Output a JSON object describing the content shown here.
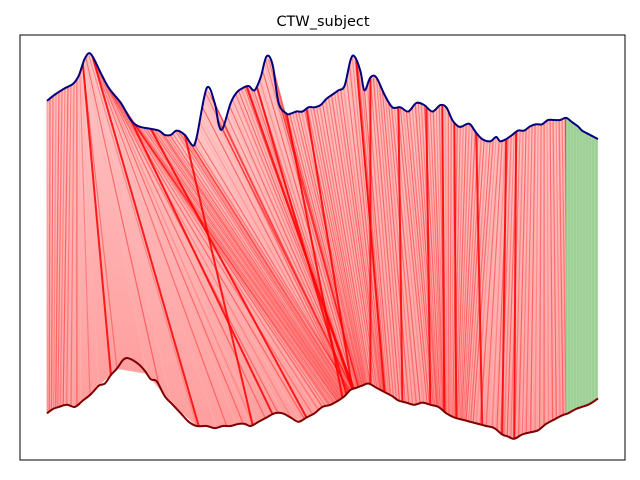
{
  "chart_data": {
    "type": "line",
    "title": "CTW_subject",
    "xlabel": "",
    "ylabel": "",
    "grid": false,
    "legend": "none",
    "colors": {
      "top_series": "#00007f",
      "bottom_series": "#7f0000",
      "alignment_lines": "#ff0000",
      "alignment_fill": "#ffb3b3",
      "tail_fill": "#a8d5a0",
      "tail_lines": "#7fbf7f"
    },
    "top_series": {
      "x": [
        0,
        8,
        18,
        26,
        32,
        38,
        44,
        54,
        62,
        74,
        84,
        92,
        102,
        112,
        118,
        124,
        130,
        138,
        146,
        150,
        160,
        168,
        172,
        176,
        184,
        190,
        196,
        202,
        208,
        214,
        220,
        226,
        232,
        240,
        244,
        250,
        256,
        262,
        268,
        274,
        280,
        286,
        292,
        298,
        304,
        308,
        314,
        318,
        324,
        330,
        338,
        346,
        354,
        362,
        370,
        378,
        386,
        394,
        400,
        406,
        412,
        416,
        420,
        424,
        430,
        436,
        444,
        450,
        454,
        460,
        466,
        472,
        478,
        484,
        490,
        496,
        502,
        508,
        514,
        520,
        526,
        532,
        536,
        540,
        544,
        548,
        552
      ],
      "y": [
        0.845,
        0.86,
        0.875,
        0.885,
        0.905,
        0.945,
        0.955,
        0.91,
        0.875,
        0.84,
        0.8,
        0.785,
        0.78,
        0.775,
        0.765,
        0.765,
        0.775,
        0.765,
        0.74,
        0.76,
        0.875,
        0.84,
        0.79,
        0.78,
        0.84,
        0.865,
        0.875,
        0.88,
        0.87,
        0.9,
        0.95,
        0.93,
        0.84,
        0.815,
        0.815,
        0.82,
        0.82,
        0.83,
        0.83,
        0.835,
        0.85,
        0.86,
        0.87,
        0.88,
        0.94,
        0.95,
        0.915,
        0.87,
        0.9,
        0.9,
        0.86,
        0.83,
        0.83,
        0.82,
        0.84,
        0.835,
        0.82,
        0.835,
        0.83,
        0.8,
        0.785,
        0.785,
        0.79,
        0.79,
        0.77,
        0.755,
        0.75,
        0.76,
        0.75,
        0.755,
        0.765,
        0.775,
        0.775,
        0.785,
        0.79,
        0.79,
        0.8,
        0.8,
        0.8,
        0.805,
        0.795,
        0.785,
        0.775,
        0.77,
        0.765,
        0.76,
        0.755
      ]
    },
    "bottom_series": {
      "x": [
        0,
        6,
        12,
        20,
        28,
        36,
        44,
        52,
        58,
        64,
        70,
        76,
        80,
        86,
        92,
        98,
        104,
        110,
        118,
        126,
        134,
        142,
        150,
        160,
        168,
        176,
        184,
        192,
        198,
        204,
        212,
        220,
        228,
        236,
        244,
        252,
        260,
        268,
        276,
        284,
        292,
        298,
        304,
        310,
        316,
        322,
        330,
        338,
        346,
        352,
        360,
        368,
        376,
        384,
        392,
        400,
        408,
        416,
        424,
        432,
        440,
        448,
        456,
        462,
        468,
        476,
        484,
        492,
        500,
        508,
        516,
        522,
        530,
        536,
        542,
        546,
        552
      ],
      "y": [
        0.11,
        0.12,
        0.125,
        0.13,
        0.125,
        0.14,
        0.155,
        0.175,
        0.18,
        0.2,
        0.215,
        0.235,
        0.24,
        0.235,
        0.225,
        0.21,
        0.19,
        0.185,
        0.15,
        0.13,
        0.11,
        0.09,
        0.08,
        0.08,
        0.075,
        0.08,
        0.08,
        0.085,
        0.085,
        0.08,
        0.09,
        0.1,
        0.11,
        0.11,
        0.1,
        0.09,
        0.1,
        0.11,
        0.125,
        0.13,
        0.14,
        0.15,
        0.165,
        0.17,
        0.175,
        0.18,
        0.17,
        0.16,
        0.15,
        0.14,
        0.135,
        0.13,
        0.135,
        0.13,
        0.125,
        0.11,
        0.1,
        0.095,
        0.09,
        0.085,
        0.08,
        0.075,
        0.06,
        0.055,
        0.05,
        0.06,
        0.065,
        0.07,
        0.085,
        0.095,
        0.105,
        0.11,
        0.12,
        0.125,
        0.13,
        0.135,
        0.145
      ]
    },
    "alignment_map": [
      [
        0,
        0
      ],
      [
        8,
        6
      ],
      [
        14,
        10
      ],
      [
        20,
        15
      ],
      [
        26,
        22
      ],
      [
        32,
        34
      ],
      [
        36,
        70
      ],
      [
        38,
        100
      ],
      [
        42,
        150
      ],
      [
        46,
        190
      ],
      [
        52,
        210
      ],
      [
        58,
        236
      ],
      [
        64,
        262
      ],
      [
        70,
        274
      ],
      [
        78,
        282
      ],
      [
        86,
        286
      ],
      [
        94,
        290
      ],
      [
        102,
        292
      ],
      [
        110,
        294
      ],
      [
        118,
        296
      ],
      [
        126,
        298
      ],
      [
        134,
        300
      ],
      [
        142,
        302
      ],
      [
        148,
        304
      ],
      [
        154,
        302
      ],
      [
        160,
        302
      ],
      [
        166,
        304
      ],
      [
        172,
        306
      ],
      [
        180,
        306
      ],
      [
        188,
        308
      ],
      [
        196,
        308
      ],
      [
        204,
        306
      ],
      [
        212,
        306
      ],
      [
        220,
        310
      ],
      [
        228,
        312
      ],
      [
        236,
        312
      ],
      [
        244,
        314
      ],
      [
        252,
        316
      ],
      [
        260,
        318
      ],
      [
        268,
        320
      ],
      [
        276,
        324
      ],
      [
        284,
        330
      ],
      [
        292,
        334
      ],
      [
        300,
        336
      ],
      [
        306,
        338
      ],
      [
        312,
        340
      ],
      [
        318,
        344
      ],
      [
        326,
        352
      ],
      [
        334,
        360
      ],
      [
        342,
        370
      ],
      [
        350,
        380
      ],
      [
        358,
        386
      ],
      [
        366,
        390
      ],
      [
        374,
        392
      ],
      [
        382,
        396
      ],
      [
        390,
        398
      ],
      [
        398,
        400
      ],
      [
        406,
        404
      ],
      [
        414,
        408
      ],
      [
        422,
        412
      ],
      [
        430,
        416
      ],
      [
        438,
        420
      ],
      [
        446,
        426
      ],
      [
        452,
        432
      ],
      [
        456,
        440
      ],
      [
        460,
        448
      ],
      [
        466,
        456
      ],
      [
        472,
        462
      ],
      [
        478,
        470
      ],
      [
        486,
        480
      ],
      [
        494,
        492
      ],
      [
        502,
        504
      ],
      [
        510,
        514
      ],
      [
        516,
        520
      ],
      [
        520,
        522
      ],
      [
        524,
        526
      ],
      [
        528,
        530
      ],
      [
        532,
        534
      ],
      [
        536,
        538
      ],
      [
        540,
        542
      ],
      [
        544,
        546
      ],
      [
        548,
        550
      ],
      [
        552,
        552
      ]
    ],
    "strong_lines": [
      [
        36,
        64
      ],
      [
        46,
        152
      ],
      [
        84,
        226
      ],
      [
        104,
        260
      ],
      [
        138,
        206
      ],
      [
        200,
        306
      ],
      [
        210,
        300
      ],
      [
        240,
        296
      ],
      [
        260,
        306
      ],
      [
        310,
        338
      ],
      [
        324,
        324
      ],
      [
        352,
        356
      ],
      [
        380,
        384
      ],
      [
        396,
        398
      ],
      [
        408,
        410
      ],
      [
        430,
        436
      ],
      [
        460,
        456
      ],
      [
        470,
        468
      ],
      [
        520,
        522
      ]
    ],
    "tail_start_x": 520
  }
}
